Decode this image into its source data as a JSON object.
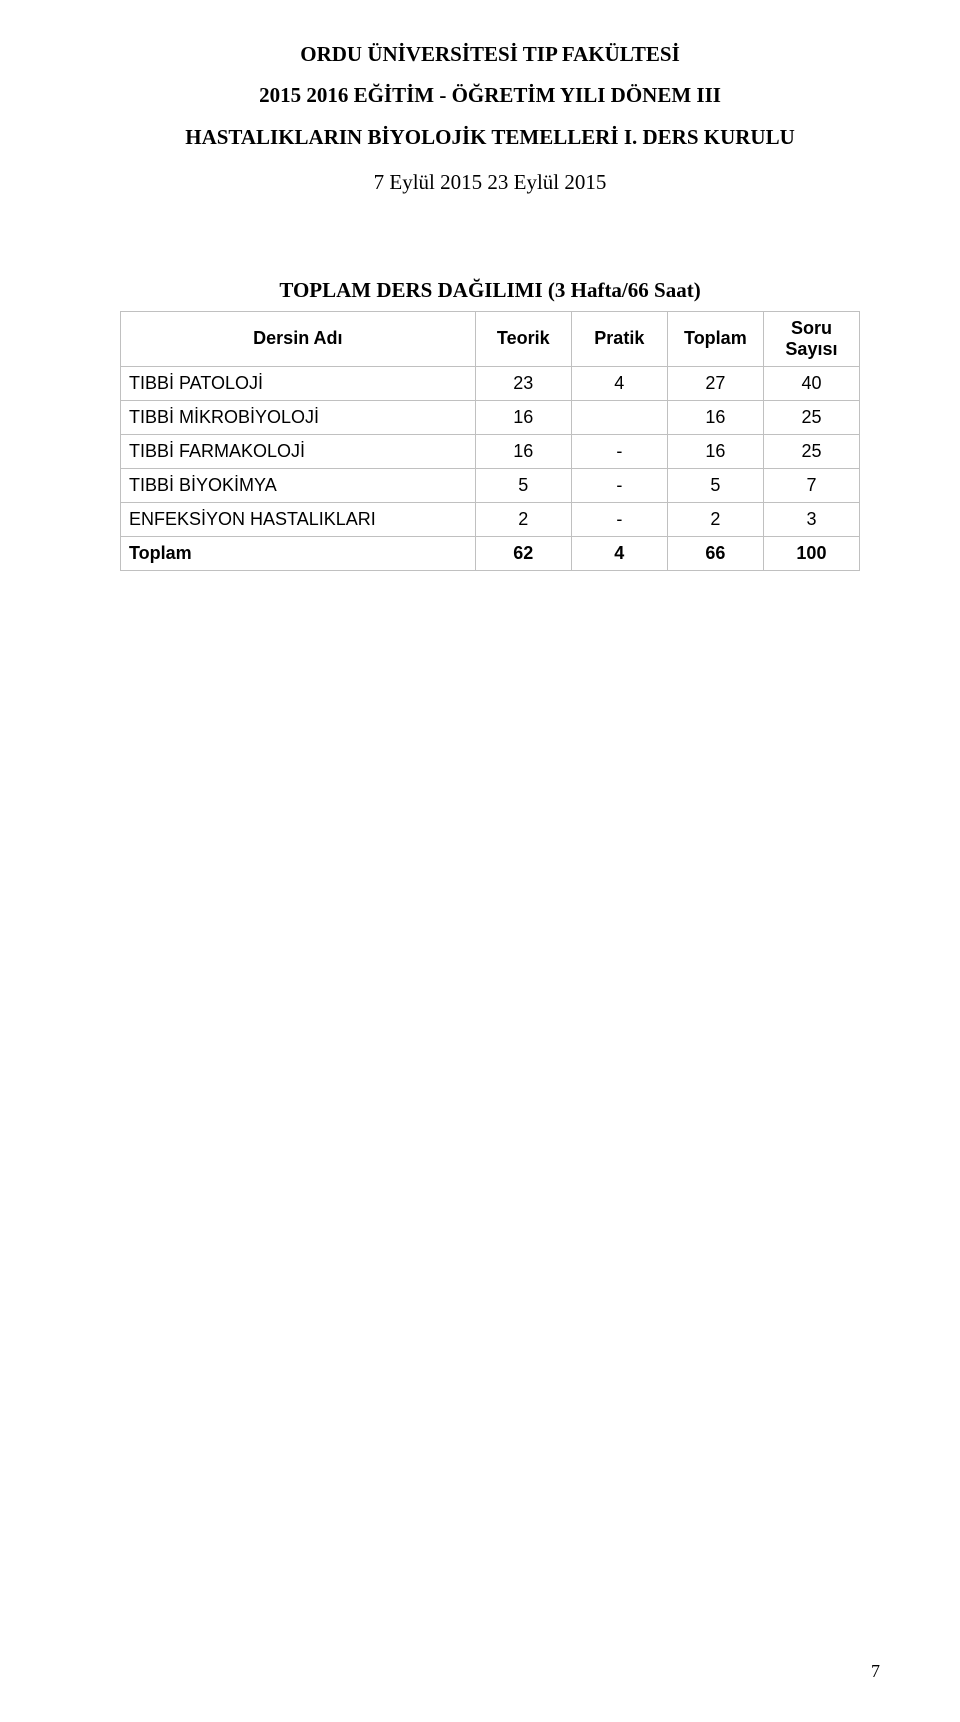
{
  "heading": {
    "line1": "ORDU ÜNİVERSİTESİ TIP FAKÜLTESİ",
    "line2": "2015 2016 EĞİTİM - ÖĞRETİM YILI DÖNEM III",
    "line3": "HASTALIKLARIN BİYOLOJİK TEMELLERİ I. DERS KURULU",
    "line4": "7 Eylül 2015 23 Eylül 2015"
  },
  "table": {
    "title": "TOPLAM DERS DAĞILIMI (3 Hafta/66 Saat)",
    "columns": {
      "name": "Dersin Adı",
      "teorik": "Teorik",
      "pratik": "Pratik",
      "toplam": "Toplam",
      "soru": "Soru Sayısı"
    },
    "rows": [
      {
        "name": "TIBBİ PATOLOJİ",
        "teorik": "23",
        "pratik": "4",
        "toplam": "27",
        "soru": "40"
      },
      {
        "name": "TIBBİ MİKROBİYOLOJİ",
        "teorik": "16",
        "pratik": "",
        "toplam": "16",
        "soru": "25"
      },
      {
        "name": "TIBBİ FARMAKOLOJİ",
        "teorik": "16",
        "pratik": "-",
        "toplam": "16",
        "soru": "25"
      },
      {
        "name": "TIBBİ BİYOKİMYA",
        "teorik": "5",
        "pratik": "-",
        "toplam": "5",
        "soru": "7"
      },
      {
        "name": "ENFEKSİYON HASTALIKLARI",
        "teorik": "2",
        "pratik": "-",
        "toplam": "2",
        "soru": "3"
      }
    ],
    "total": {
      "name": "Toplam",
      "teorik": "62",
      "pratik": "4",
      "toplam": "66",
      "soru": "100"
    }
  },
  "pageNumber": "7",
  "style": {
    "border_color": "#c0c0c0",
    "text_color": "#000000",
    "background_color": "#ffffff",
    "heading_font": "Times New Roman",
    "table_font": "Arial",
    "heading_fontsize_pt": 16,
    "table_fontsize_pt": 13
  }
}
